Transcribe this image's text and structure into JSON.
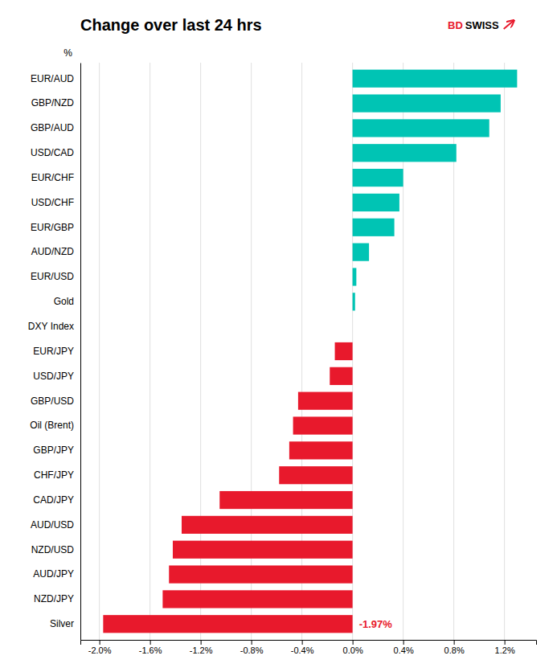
{
  "chart_data": {
    "type": "bar",
    "orientation": "horizontal",
    "title": "Change over last 24 hrs",
    "ylabel": "%",
    "categories": [
      "Silver",
      "NZD/JPY",
      "AUD/JPY",
      "NZD/USD",
      "AUD/USD",
      "CAD/JPY",
      "CHF/JPY",
      "GBP/JPY",
      "Oil (Brent)",
      "GBP/USD",
      "USD/JPY",
      "EUR/JPY",
      "DXY Index",
      "Gold",
      "EUR/USD",
      "AUD/NZD",
      "EUR/GBP",
      "USD/CHF",
      "EUR/CHF",
      "USD/CAD",
      "GBP/AUD",
      "GBP/NZD",
      "EUR/AUD"
    ],
    "values": [
      -1.97,
      -1.5,
      -1.45,
      -1.42,
      -1.35,
      -1.05,
      -0.58,
      -0.5,
      -0.47,
      -0.43,
      -0.18,
      -0.14,
      0.0,
      0.02,
      0.03,
      0.13,
      0.33,
      0.37,
      0.4,
      0.82,
      1.08,
      1.17,
      1.3
    ],
    "colors": [
      "#E8192C",
      "#E8192C",
      "#E8192C",
      "#E8192C",
      "#E8192C",
      "#E8192C",
      "#E8192C",
      "#E8192C",
      "#E8192C",
      "#E8192C",
      "#E8192C",
      "#E8192C",
      "#00C4B4",
      "#00C4B4",
      "#00C4B4",
      "#00C4B4",
      "#00C4B4",
      "#00C4B4",
      "#00C4B4",
      "#00C4B4",
      "#00C4B4",
      "#00C4B4",
      "#00C4B4"
    ],
    "xlim": [
      -2.15,
      1.45
    ],
    "xticks": [
      {
        "value": -2.0,
        "label": "-2.0%"
      },
      {
        "value": -1.6,
        "label": "-1.6%"
      },
      {
        "value": -1.2,
        "label": "-1.2%"
      },
      {
        "value": -0.8,
        "label": "-0.8%"
      },
      {
        "value": -0.4,
        "label": "-0.4%"
      },
      {
        "value": 0.0,
        "label": "0.0%"
      },
      {
        "value": 0.4,
        "label": "0.4%"
      },
      {
        "value": 0.8,
        "label": "0.8%"
      },
      {
        "value": 1.2,
        "label": "1.2%"
      }
    ],
    "grid": true,
    "annotations": [
      {
        "text": "-1.97%",
        "color": "#E8192C",
        "category": "Silver"
      },
      {
        "text": "BD",
        "color": "#E8192C"
      },
      {
        "text": "SWISS",
        "color": "#000000"
      }
    ]
  }
}
